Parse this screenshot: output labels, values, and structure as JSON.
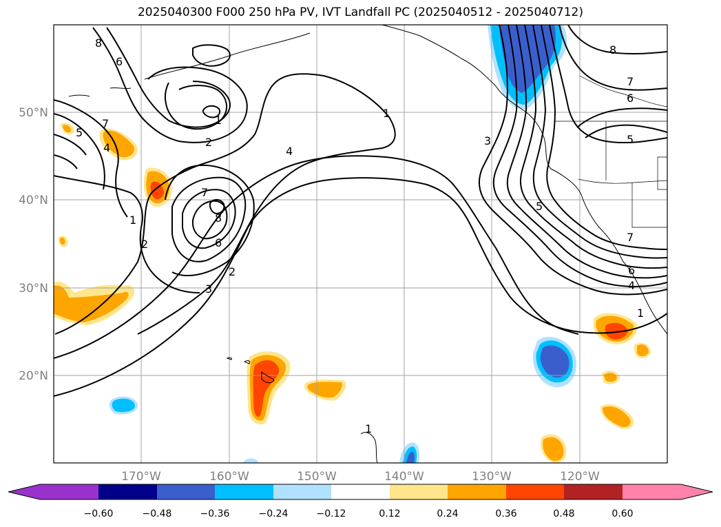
{
  "title": "2025040300 F000 250 hPa PV, IVT Landfall PC (2025040512 - 2025040712)",
  "map": {
    "projection": "PlateCarree",
    "lon_range": [
      "180",
      "110°W"
    ],
    "lat_range": [
      "10°N",
      "60°N"
    ],
    "lon_ticks": [
      "170°W",
      "160°W",
      "150°W",
      "140°W",
      "130°W",
      "120°W"
    ],
    "lat_ticks": [
      "50°N",
      "40°N",
      "30°N",
      "20°N"
    ],
    "gridlines": true
  },
  "contours": {
    "field": "250 hPa PV",
    "color": "#000000",
    "labels": [
      "8",
      "6",
      "1",
      "2",
      "7",
      "5",
      "4",
      "8",
      "7",
      "6",
      "2",
      "3",
      "1",
      "2",
      "4",
      "1",
      "3",
      "5",
      "8",
      "7",
      "6",
      "5",
      "7",
      "6",
      "4",
      "1",
      "1"
    ]
  },
  "colorbar": {
    "ticks": [
      "−0.60",
      "−0.48",
      "−0.36",
      "−0.24",
      "−0.12",
      "0.12",
      "0.24",
      "0.36",
      "0.48",
      "0.60"
    ],
    "extend": "both",
    "colors": [
      "#9932CC",
      "#00008B",
      "#3A5FCD",
      "#00BFFF",
      "#B0E2FF",
      "#FFFFFF",
      "#FFE68C",
      "#FFA500",
      "#FF4500",
      "#B22222",
      "#FF82AB"
    ]
  }
}
